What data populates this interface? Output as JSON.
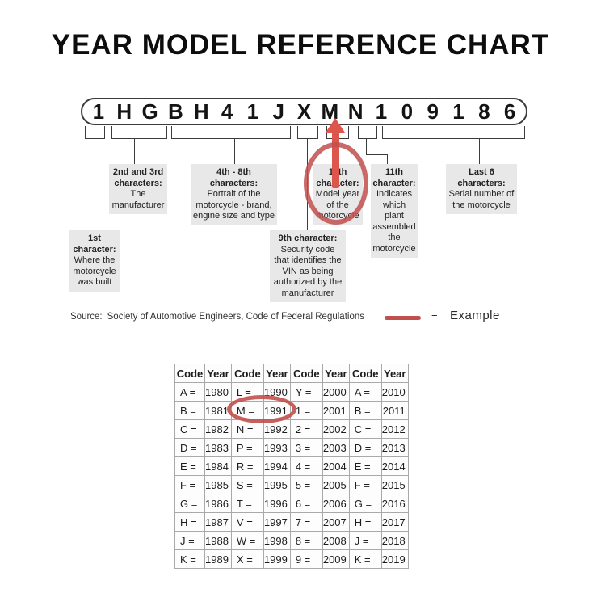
{
  "title": "YEAR MODEL REFERENCE CHART",
  "vin": {
    "characters": [
      "1",
      "H",
      "G",
      "B",
      "H",
      "4",
      "1",
      "J",
      "X",
      "M",
      "N",
      "1",
      "0",
      "9",
      "1",
      "8",
      "6"
    ]
  },
  "annotations": {
    "char1": {
      "heading": "1st\ncharacter:",
      "body": "Where the\nmotorcycle\nwas built"
    },
    "char2_3": {
      "heading": "2nd and 3rd\ncharacters:",
      "body": "The\nmanufacturer"
    },
    "char4_8": {
      "heading": "4th - 8th\ncharacters:",
      "body": "Portrait of the\nmotorcycle - brand,\nengine size and type"
    },
    "char9": {
      "heading": "9th character:",
      "body": "Security code\nthat identifies the\nVIN as being\nauthorized by the\nmanufacturer"
    },
    "char10": {
      "heading": "10th\ncharacter:",
      "body": "Model year\nof the\nmotorcycle"
    },
    "char11": {
      "heading": "11th\ncharacter:",
      "body": "Indicates\nwhich plant\nassembled\nthe\nmotorcycle"
    },
    "last6": {
      "heading": "Last 6\ncharacters:",
      "body": "Serial number of\nthe motorcycle"
    }
  },
  "source": {
    "label": "Source:",
    "text": "Society of Automotive Engineers, Code of Federal Regulations"
  },
  "legend": {
    "equals": "=",
    "label": "Example"
  },
  "table": {
    "headers": [
      "Code",
      "Year",
      "Code",
      "Year",
      "Code",
      "Year",
      "Code",
      "Year"
    ],
    "rows": [
      [
        "A =",
        "1980",
        "L =",
        "1990",
        "Y =",
        "2000",
        "A =",
        "2010"
      ],
      [
        "B =",
        "1981",
        "M =",
        "1991",
        "1 =",
        "2001",
        "B =",
        "2011"
      ],
      [
        "C =",
        "1982",
        "N =",
        "1992",
        "2 =",
        "2002",
        "C =",
        "2012"
      ],
      [
        "D =",
        "1983",
        "P =",
        "1993",
        "3 =",
        "2003",
        "D =",
        "2013"
      ],
      [
        "E =",
        "1984",
        "R =",
        "1994",
        "4 =",
        "2004",
        "E =",
        "2014"
      ],
      [
        "F =",
        "1985",
        "S =",
        "1995",
        "5 =",
        "2005",
        "F =",
        "2015"
      ],
      [
        "G =",
        "1986",
        "T =",
        "1996",
        "6 =",
        "2006",
        "G =",
        "2016"
      ],
      [
        "H =",
        "1987",
        "V =",
        "1997",
        "7 =",
        "2007",
        "H =",
        "2017"
      ],
      [
        "J =",
        "1988",
        "W =",
        "1998",
        "8 =",
        "2008",
        "J =",
        "2018"
      ],
      [
        "K =",
        "1989",
        "X =",
        "1999",
        "9 =",
        "2009",
        "K =",
        "2019"
      ]
    ],
    "highlighted_example": "M = 1991"
  },
  "colors": {
    "example_red": "#c0504d",
    "arrow_red": "#dc564c",
    "note_bg": "#e8e8e8",
    "line_dark": "#3b3b3b",
    "table_border": "#a9a9a9",
    "text": "#1a1a1a"
  }
}
